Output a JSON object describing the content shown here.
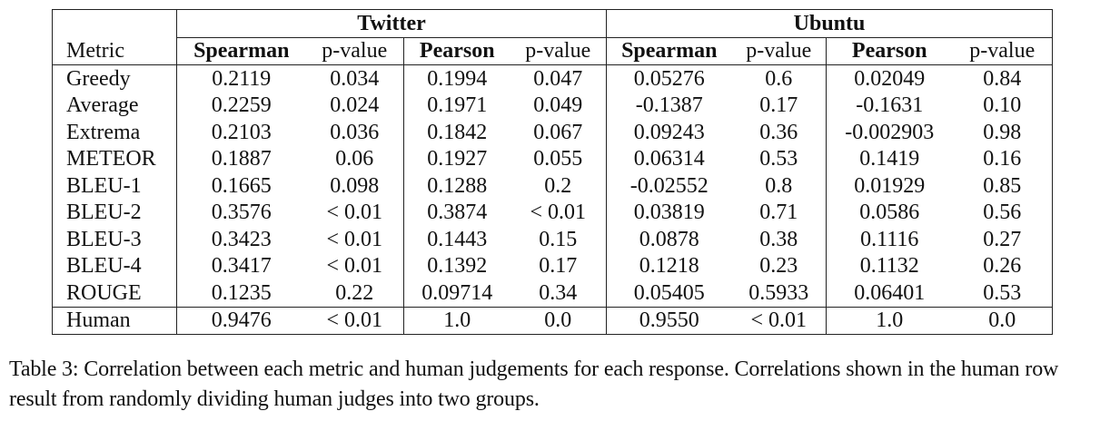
{
  "table": {
    "groups": [
      {
        "label": "Twitter"
      },
      {
        "label": "Ubuntu"
      }
    ],
    "header": {
      "metric": "Metric",
      "cols": [
        "Spearman",
        "p-value",
        "Pearson",
        "p-value",
        "Spearman",
        "p-value",
        "Pearson",
        "p-value"
      ]
    },
    "rows": [
      {
        "metric": "Greedy",
        "values": [
          "0.2119",
          "0.034",
          "0.1994",
          "0.047",
          "0.05276",
          "0.6",
          "0.02049",
          "0.84"
        ]
      },
      {
        "metric": "Average",
        "values": [
          "0.2259",
          "0.024",
          "0.1971",
          "0.049",
          "-0.1387",
          "0.17",
          "-0.1631",
          "0.10"
        ]
      },
      {
        "metric": "Extrema",
        "values": [
          "0.2103",
          "0.036",
          "0.1842",
          "0.067",
          "0.09243",
          "0.36",
          "-0.002903",
          "0.98"
        ]
      },
      {
        "metric": "METEOR",
        "values": [
          "0.1887",
          "0.06",
          "0.1927",
          "0.055",
          "0.06314",
          "0.53",
          "0.1419",
          "0.16"
        ]
      },
      {
        "metric": "BLEU-1",
        "values": [
          "0.1665",
          "0.098",
          "0.1288",
          "0.2",
          "-0.02552",
          "0.8",
          "0.01929",
          "0.85"
        ]
      },
      {
        "metric": "BLEU-2",
        "values": [
          "0.3576",
          "< 0.01",
          "0.3874",
          "< 0.01",
          "0.03819",
          "0.71",
          "0.0586",
          "0.56"
        ]
      },
      {
        "metric": "BLEU-3",
        "values": [
          "0.3423",
          "< 0.01",
          "0.1443",
          "0.15",
          "0.0878",
          "0.38",
          "0.1116",
          "0.27"
        ]
      },
      {
        "metric": "BLEU-4",
        "values": [
          "0.3417",
          "< 0.01",
          "0.1392",
          "0.17",
          "0.1218",
          "0.23",
          "0.1132",
          "0.26"
        ]
      },
      {
        "metric": "ROUGE",
        "values": [
          "0.1235",
          "0.22",
          "0.09714",
          "0.34",
          "0.05405",
          "0.5933",
          "0.06401",
          "0.53"
        ]
      },
      {
        "metric": "Human",
        "values": [
          "0.9476",
          "< 0.01",
          "1.0",
          "0.0",
          "0.9550",
          "< 0.01",
          "1.0",
          "0.0"
        ]
      }
    ]
  },
  "caption": "Table 3:  Correlation between each metric and human judgements for each response. Correlations shown in the human row result from randomly dividing human judges into two groups."
}
